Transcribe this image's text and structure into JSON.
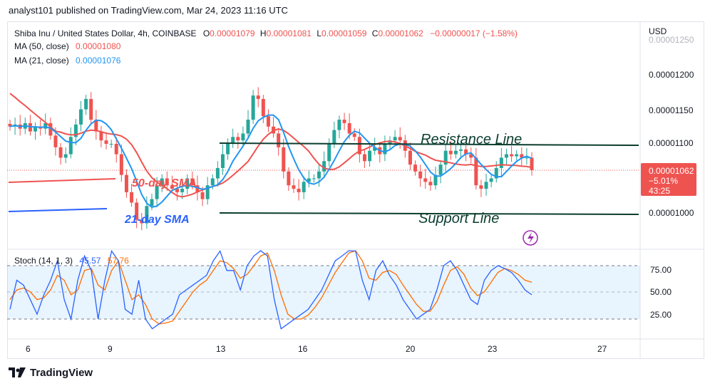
{
  "header": {
    "publisher_line": "analyst101 published on TradingView.com, Mar 24, 2023 11:16 UTC"
  },
  "legend": {
    "symbol": "Shiba Inu / United States Dollar, 4h, COINBASE",
    "o_label": "O",
    "o_value": "0.00001079",
    "h_label": "H",
    "h_value": "0.00001081",
    "l_label": "L",
    "l_value": "0.00001059",
    "c_label": "C",
    "c_value": "0.00001062",
    "change": "−0.00000017 (−1.58%)",
    "ma50_label": "MA (50, close)",
    "ma50_value": "0.00001080",
    "ma21_label": "MA (21, close)",
    "ma21_value": "0.00001076"
  },
  "price_axis": {
    "currency": "USD",
    "ticks": [
      "0.00001250",
      "0.00001200",
      "0.00001150",
      "0.00001100",
      "0.00001000"
    ],
    "current_price": "0.00001062",
    "current_change": "−5.01%",
    "countdown": "43:25"
  },
  "stoch": {
    "label": "Stoch (14, 1, 3)",
    "k_value": "45.57",
    "d_value": "57.76",
    "ticks": [
      "75.00",
      "50.00",
      "25.00"
    ]
  },
  "time_axis": {
    "ticks": [
      "6",
      "9",
      "13",
      "16",
      "20",
      "23",
      "27"
    ]
  },
  "annotations": {
    "resistance": "Resistance Line",
    "support": "Support Line",
    "sma50": "50-day SMA",
    "sma21": "21-day SMA"
  },
  "footer": {
    "brand": "TradingView"
  },
  "colors": {
    "up": "#26a69a",
    "down": "#ef5350",
    "ma50": "#ef5350",
    "ma21": "#2196f3",
    "stoch_k": "#2962ff",
    "stoch_d": "#ff6d00",
    "line": "#0b3d2e",
    "price_tag": "#ef5350"
  },
  "chart_data": {
    "type": "candlestick",
    "timeframe": "4h",
    "y_range": [
      9.6e-06,
      1.26e-05
    ],
    "candles_close_path": [
      1.125,
      1.128,
      1.122,
      1.13,
      1.118,
      1.125,
      1.122,
      1.13,
      1.112,
      1.095,
      1.08,
      1.085,
      1.11,
      1.128,
      1.15,
      1.165,
      1.135,
      1.118,
      1.105,
      1.1,
      1.1,
      1.085,
      1.055,
      1.03,
      1.015,
      0.99,
      0.985,
      1.01,
      1.02,
      1.04,
      1.05,
      1.04,
      1.035,
      1.03,
      1.035,
      1.05,
      1.04,
      1.03,
      1.02,
      1.04,
      1.05,
      1.065,
      1.085,
      1.1,
      1.11,
      1.105,
      1.115,
      1.135,
      1.17,
      1.165,
      1.14,
      1.125,
      1.115,
      1.095,
      1.06,
      1.04,
      1.035,
      1.03,
      1.045,
      1.05,
      1.05,
      1.06,
      1.075,
      1.1,
      1.12,
      1.135,
      1.13,
      1.115,
      1.11,
      1.085,
      1.075,
      1.09,
      1.095,
      1.085,
      1.1,
      1.105,
      1.11,
      1.105,
      1.09,
      1.07,
      1.06,
      1.05,
      1.045,
      1.04,
      1.055,
      1.07,
      1.09,
      1.085,
      1.09,
      1.092,
      1.085,
      1.08,
      1.04,
      1.035,
      1.045,
      1.05,
      1.065,
      1.08,
      1.085,
      1.082,
      1.085,
      1.08,
      1.08,
      1.062
    ],
    "stoch_k_path": [
      30,
      60,
      55,
      40,
      25,
      45,
      60,
      80,
      40,
      20,
      60,
      85,
      70,
      20,
      60,
      90,
      80,
      30,
      25,
      60,
      20,
      10,
      15,
      20,
      25,
      45,
      50,
      55,
      60,
      65,
      80,
      90,
      70,
      70,
      50,
      75,
      85,
      95,
      85,
      40,
      10,
      15,
      20,
      25,
      30,
      40,
      50,
      65,
      80,
      85,
      95,
      90,
      60,
      40,
      70,
      80,
      65,
      55,
      40,
      30,
      20,
      25,
      30,
      50,
      75,
      80,
      70,
      55,
      40,
      35,
      60,
      70,
      75,
      72,
      68,
      60,
      50,
      45
    ],
    "stoch_d_path": [
      40,
      50,
      52,
      48,
      40,
      42,
      50,
      65,
      60,
      45,
      50,
      70,
      72,
      55,
      50,
      70,
      80,
      60,
      40,
      45,
      35,
      20,
      15,
      16,
      18,
      28,
      38,
      48,
      55,
      60,
      70,
      80,
      78,
      72,
      62,
      66,
      75,
      85,
      88,
      70,
      45,
      25,
      20,
      20,
      24,
      32,
      42,
      55,
      68,
      78,
      88,
      92,
      80,
      62,
      60,
      68,
      70,
      66,
      55,
      45,
      35,
      28,
      28,
      38,
      55,
      70,
      74,
      66,
      52,
      44,
      48,
      58,
      68,
      72,
      70,
      66,
      60,
      58
    ]
  }
}
